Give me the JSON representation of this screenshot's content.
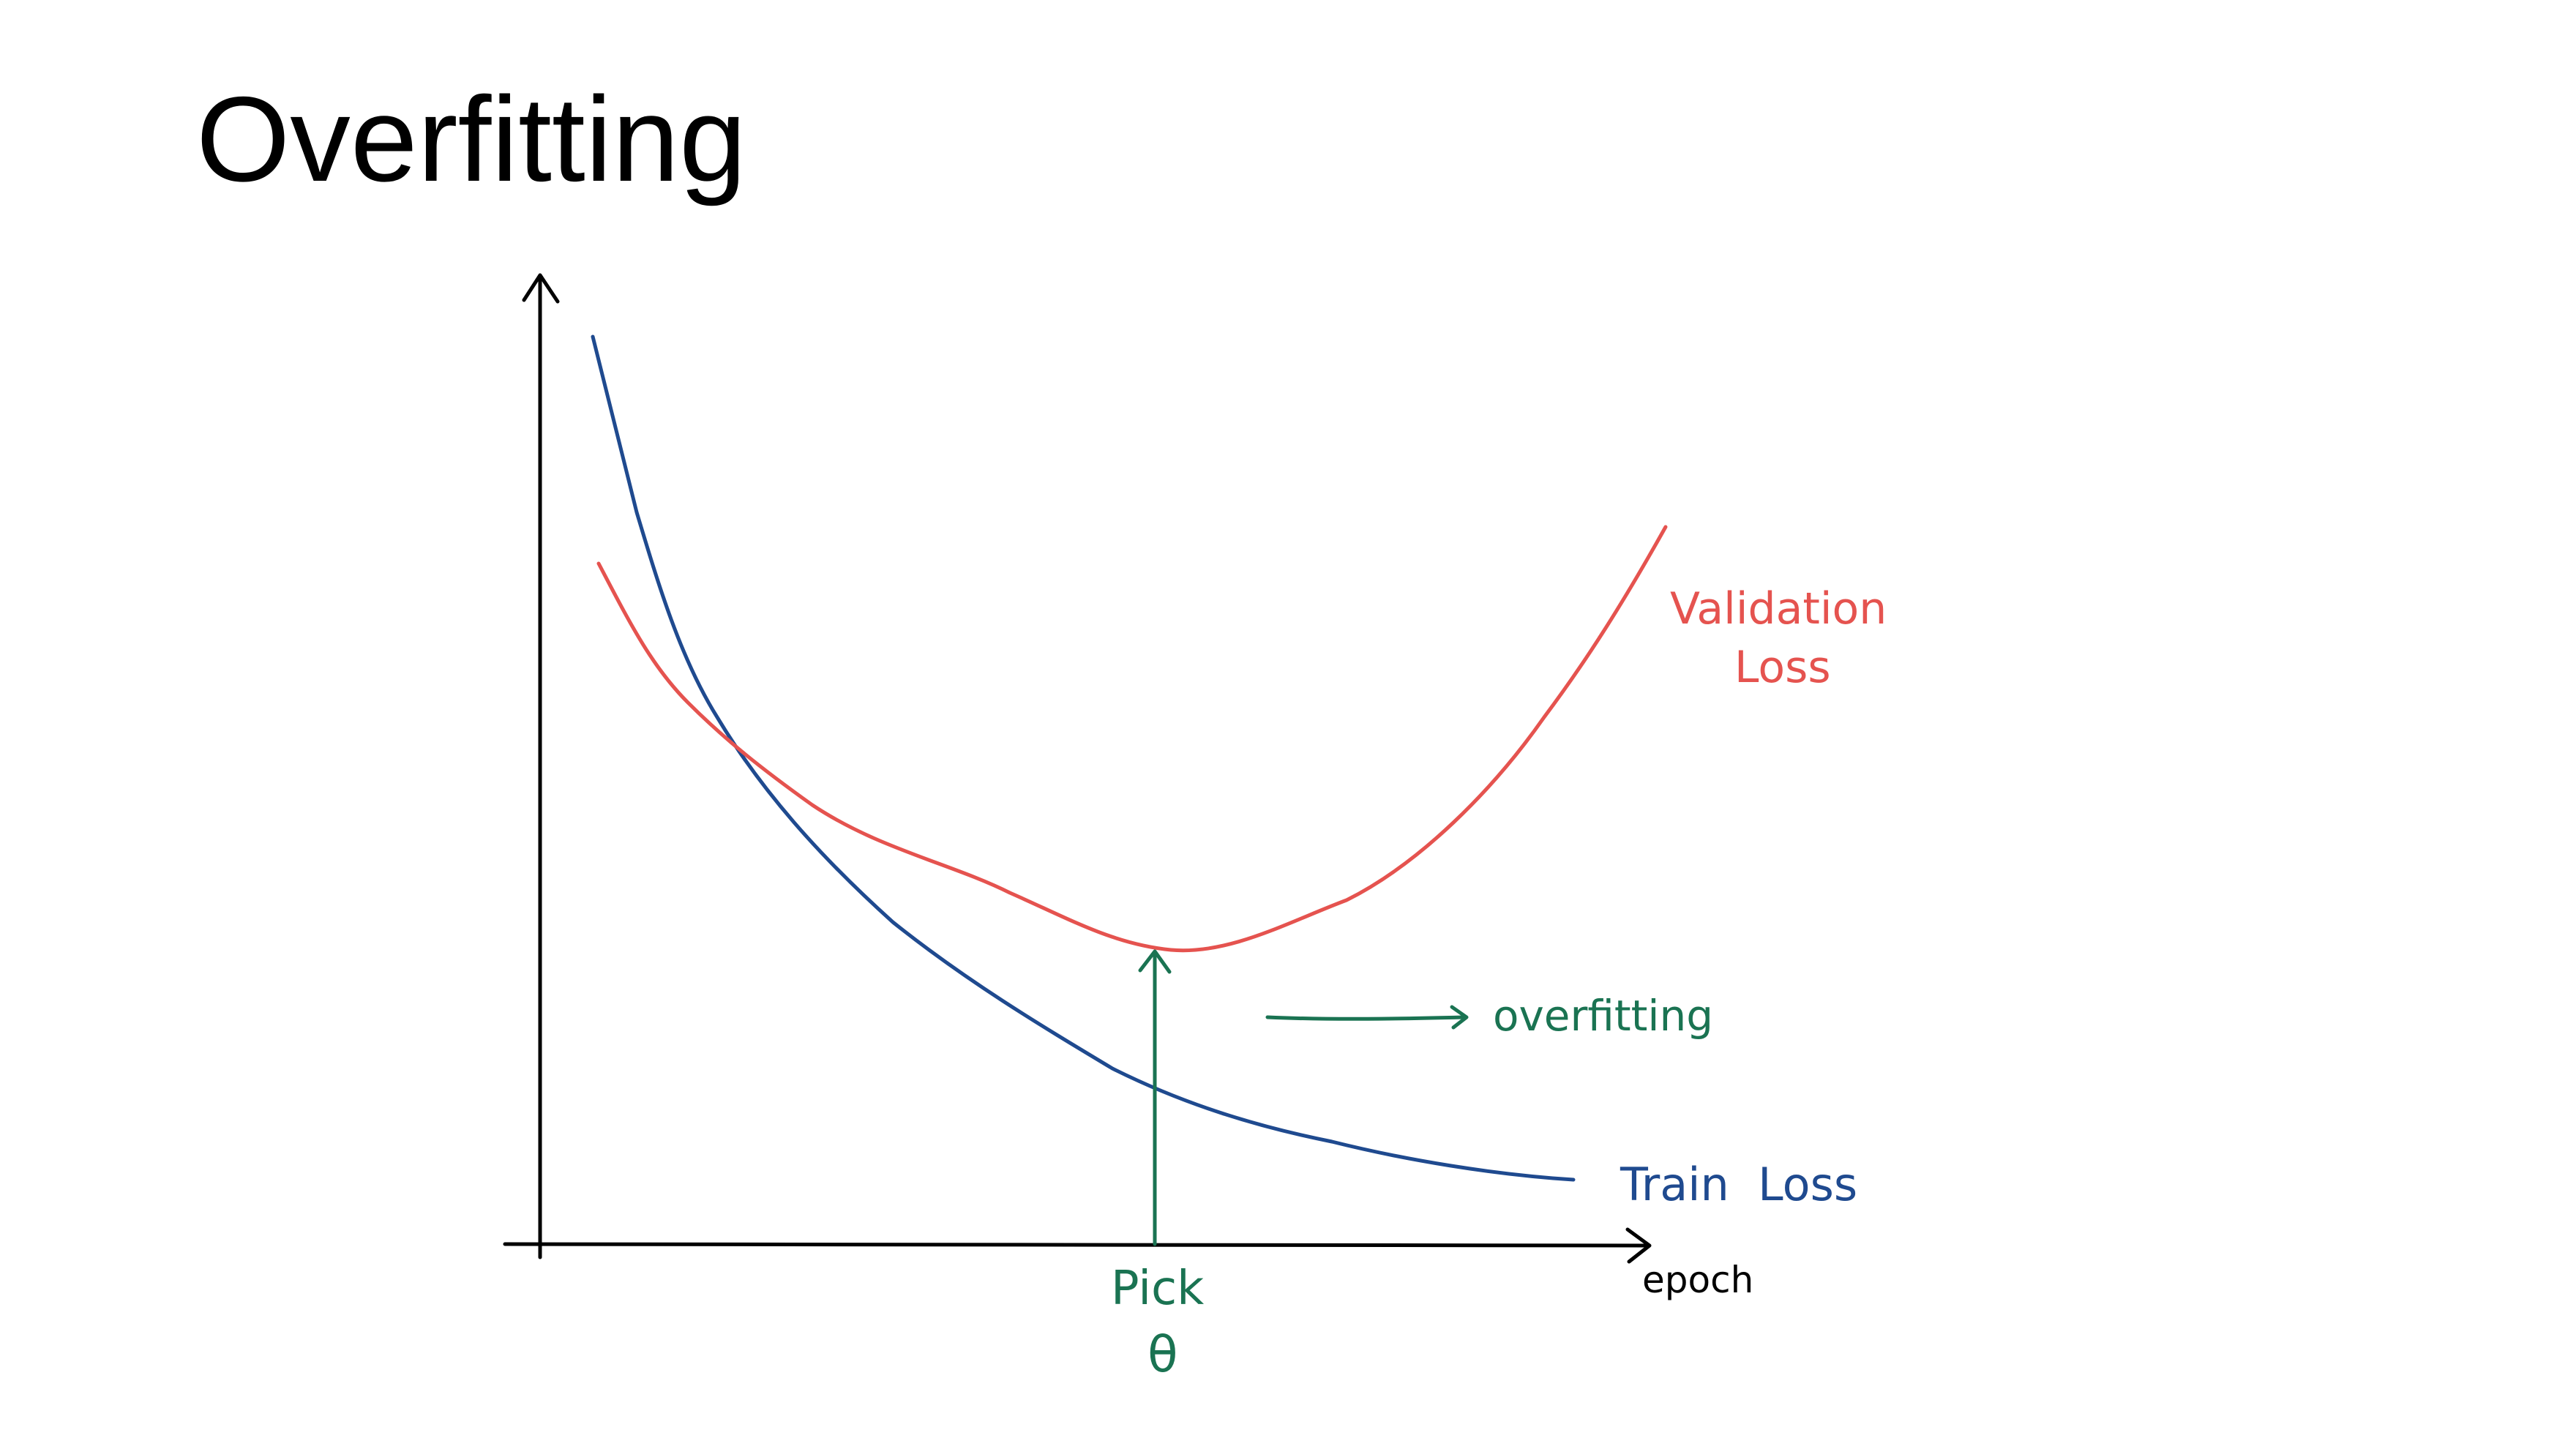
{
  "slide": {
    "title": "Overfitting"
  },
  "diagram": {
    "x_axis_label": "epoch",
    "curves": {
      "train": {
        "label": "Train  Loss",
        "color": "#1f4a8f"
      },
      "validation": {
        "label_line1": "Validation",
        "label_line2": "Loss",
        "color": "#e5534f"
      }
    },
    "annotation": {
      "color": "#1a7352",
      "arrow_label": "overfitting",
      "pick_line1": "Pick",
      "pick_line2": "θ"
    },
    "axis_color": "#000000"
  }
}
